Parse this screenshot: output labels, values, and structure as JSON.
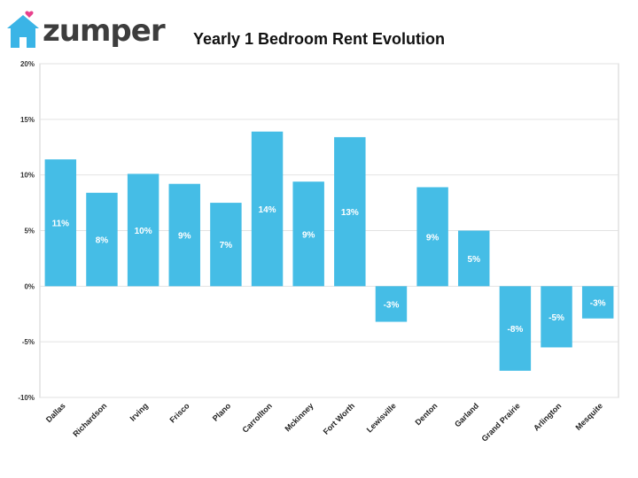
{
  "brand": {
    "name": "zumper",
    "accent": "#3ab4e6",
    "heart_color": "#e8418c"
  },
  "chart_data": {
    "type": "bar",
    "title": "Yearly 1 Bedroom Rent Evolution",
    "categories": [
      "Dallas",
      "Richardson",
      "Irving",
      "Frisco",
      "Plano",
      "Carrollton",
      "Mckinney",
      "Fort Worth",
      "Lewisville",
      "Denton",
      "Garland",
      "Grand Prairie",
      "Arlington",
      "Mesquite"
    ],
    "values": [
      11.4,
      8.4,
      10.1,
      9.2,
      7.5,
      13.9,
      9.4,
      13.4,
      -3.2,
      8.9,
      5.0,
      -7.6,
      -5.5,
      -2.9
    ],
    "labels": [
      "11%",
      "8%",
      "10%",
      "9%",
      "7%",
      "14%",
      "9%",
      "13%",
      "-3%",
      "9%",
      "5%",
      "-8%",
      "-5%",
      "-3%"
    ],
    "ylim": [
      -10,
      20
    ],
    "yticks": [
      -10,
      -5,
      0,
      5,
      10,
      15,
      20
    ],
    "ytick_labels": [
      "-10%",
      "-5%",
      "0%",
      "5%",
      "10%",
      "15%",
      "20%"
    ],
    "bar_color": "#45bde6",
    "grid": true,
    "xlabel": "",
    "ylabel": ""
  }
}
